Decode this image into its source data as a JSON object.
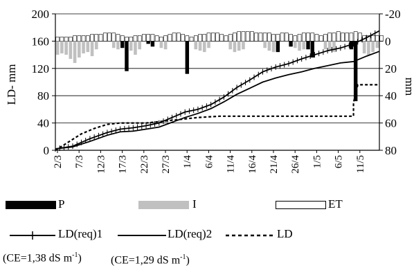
{
  "chart_data": {
    "type": "bar+line",
    "left_axis": {
      "label": "LD- mm",
      "range": [
        0,
        200
      ],
      "ticks": [
        "0",
        "40",
        "80",
        "120",
        "160",
        "200"
      ]
    },
    "right_axis": {
      "label": "mm",
      "range_top_to_bottom": [
        -20,
        80
      ],
      "ticks": [
        "-20",
        "0",
        "20",
        "40",
        "60",
        "80"
      ]
    },
    "x_axis": {
      "start": "2/3",
      "days": 75,
      "tick_labels": [
        "2/3",
        "7/3",
        "12/3",
        "17/3",
        "22/3",
        "27/3",
        "1/4",
        "6/4",
        "11/4",
        "16/4",
        "21/4",
        "26/4",
        "1/5",
        "6/5",
        "11/5"
      ]
    },
    "grid": "horizontal",
    "series": [
      {
        "name": "P",
        "kind": "bar-down",
        "color": "#000000",
        "points": [
          [
            15,
            5
          ],
          [
            16,
            22
          ],
          [
            21,
            2
          ],
          [
            22,
            4
          ],
          [
            30,
            24
          ],
          [
            51,
            8
          ],
          [
            54,
            4
          ],
          [
            58,
            6
          ],
          [
            59,
            12
          ],
          [
            68,
            6
          ],
          [
            69,
            44
          ]
        ]
      },
      {
        "name": "I",
        "kind": "bar-down",
        "color": "#c0c0c0",
        "values": [
          10,
          9,
          10,
          13,
          16,
          12,
          9,
          8,
          11,
          6,
          0,
          0,
          0,
          5,
          6,
          0,
          9,
          7,
          10,
          6,
          0,
          0,
          0,
          0,
          5,
          6,
          0,
          0,
          0,
          0,
          0,
          0,
          6,
          7,
          8,
          5,
          0,
          0,
          0,
          0,
          6,
          8,
          7,
          6,
          0,
          0,
          0,
          0,
          5,
          7,
          8,
          6,
          0,
          0,
          0,
          5,
          7,
          6,
          0,
          0,
          0,
          0,
          6,
          7,
          8,
          0,
          0,
          0,
          0,
          0,
          0,
          9,
          10,
          8,
          5,
          0
        ]
      },
      {
        "name": "ET",
        "kind": "bar-up",
        "color": "#ffffff",
        "values": [
          3,
          3,
          3,
          3,
          4,
          4,
          4,
          4,
          5,
          5,
          5,
          6,
          6,
          6,
          5,
          4,
          3,
          3,
          4,
          4,
          5,
          5,
          5,
          4,
          3,
          4,
          5,
          6,
          6,
          5,
          4,
          3,
          4,
          5,
          5,
          6,
          6,
          6,
          5,
          4,
          5,
          6,
          7,
          7,
          7,
          7,
          6,
          6,
          6,
          6,
          5,
          5,
          6,
          6,
          5,
          4,
          5,
          6,
          6,
          6,
          5,
          4,
          5,
          6,
          6,
          7,
          6,
          6,
          6,
          7,
          6,
          4,
          4,
          4,
          4,
          4
        ]
      },
      {
        "name": "LD(req)1",
        "kind": "line-marker",
        "points": [
          [
            0,
            2
          ],
          [
            4,
            6
          ],
          [
            8,
            17
          ],
          [
            12,
            26
          ],
          [
            15,
            31
          ],
          [
            18,
            33
          ],
          [
            21,
            36
          ],
          [
            24,
            40
          ],
          [
            27,
            48
          ],
          [
            30,
            56
          ],
          [
            33,
            60
          ],
          [
            36,
            67
          ],
          [
            39,
            78
          ],
          [
            42,
            92
          ],
          [
            45,
            103
          ],
          [
            48,
            115
          ],
          [
            51,
            122
          ],
          [
            54,
            127
          ],
          [
            57,
            134
          ],
          [
            60,
            140
          ],
          [
            63,
            146
          ],
          [
            66,
            150
          ],
          [
            69,
            156
          ],
          [
            72,
            165
          ],
          [
            75,
            175
          ]
        ]
      },
      {
        "name": "LD(req)2",
        "kind": "line",
        "points": [
          [
            0,
            2
          ],
          [
            4,
            5
          ],
          [
            8,
            13
          ],
          [
            12,
            22
          ],
          [
            15,
            27
          ],
          [
            18,
            28
          ],
          [
            21,
            31
          ],
          [
            24,
            34
          ],
          [
            27,
            41
          ],
          [
            30,
            48
          ],
          [
            33,
            54
          ],
          [
            36,
            61
          ],
          [
            39,
            71
          ],
          [
            42,
            82
          ],
          [
            45,
            91
          ],
          [
            48,
            100
          ],
          [
            51,
            106
          ],
          [
            54,
            111
          ],
          [
            57,
            115
          ],
          [
            60,
            120
          ],
          [
            63,
            124
          ],
          [
            66,
            128
          ],
          [
            69,
            130
          ],
          [
            72,
            138
          ],
          [
            75,
            145
          ]
        ]
      },
      {
        "name": "LD",
        "kind": "dashed",
        "points": [
          [
            0,
            0
          ],
          [
            6,
            24
          ],
          [
            9,
            32
          ],
          [
            12,
            38
          ],
          [
            15,
            40
          ],
          [
            21,
            40
          ],
          [
            27,
            44
          ],
          [
            33,
            48
          ],
          [
            38,
            50
          ],
          [
            69,
            50
          ],
          [
            69,
            70
          ],
          [
            70,
            96
          ],
          [
            75,
            96
          ]
        ]
      }
    ],
    "legend": {
      "position": "bottom",
      "items": [
        {
          "label": "P",
          "swatch": "bar",
          "color": "#000000"
        },
        {
          "label": "I",
          "swatch": "bar",
          "color": "#c0c0c0"
        },
        {
          "label": "ET",
          "swatch": "bar",
          "color": "#ffffff"
        },
        {
          "label": "LD(req)1",
          "swatch": "line-marker"
        },
        {
          "label": "LD(req)2",
          "swatch": "line"
        },
        {
          "label": "LD",
          "swatch": "dashed"
        }
      ]
    },
    "notes": {
      "req1_pre": "(CE=1,38 dS m",
      "req1_sup": "-1",
      "req1_post": ")",
      "req2_pre": "(CE=1,29 dS m",
      "req2_sup": "-1",
      "req2_post": ")"
    }
  }
}
